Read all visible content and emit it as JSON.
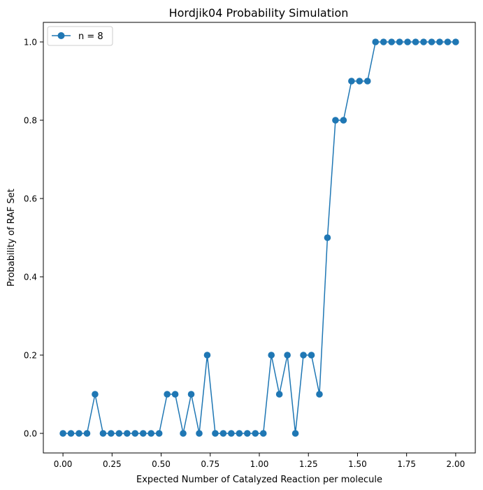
{
  "chart_data": {
    "type": "line",
    "title": "Hordjik04 Probability Simulation",
    "xlabel": "Expected Number of Catalyzed Reaction per molecule",
    "ylabel": "Probability of RAF Set",
    "xlim": [
      -0.1,
      2.1
    ],
    "ylim": [
      -0.05,
      1.05
    ],
    "xticks": [
      "0.00",
      "0.25",
      "0.50",
      "0.75",
      "1.00",
      "1.25",
      "1.50",
      "1.75",
      "2.00"
    ],
    "yticks": [
      "0.0",
      "0.2",
      "0.4",
      "0.6",
      "0.8",
      "1.0"
    ],
    "legend_position": "top-left",
    "grid": false,
    "series": [
      {
        "name": "n = 8",
        "color": "#1f77b4",
        "marker": "circle",
        "x": [
          0.0,
          0.0408,
          0.0816,
          0.1224,
          0.1633,
          0.2041,
          0.2449,
          0.2857,
          0.3265,
          0.3673,
          0.4082,
          0.449,
          0.4898,
          0.5306,
          0.5714,
          0.6122,
          0.6531,
          0.6939,
          0.7347,
          0.7755,
          0.8163,
          0.8571,
          0.898,
          0.9388,
          0.9796,
          1.0204,
          1.0612,
          1.102,
          1.1429,
          1.1837,
          1.2245,
          1.2653,
          1.3061,
          1.3469,
          1.3878,
          1.4286,
          1.4694,
          1.5102,
          1.551,
          1.5918,
          1.6327,
          1.6735,
          1.7143,
          1.7551,
          1.7959,
          1.8367,
          1.8776,
          1.9184,
          1.9592,
          2.0
        ],
        "y": [
          0,
          0,
          0,
          0,
          0.1,
          0,
          0,
          0,
          0,
          0,
          0,
          0,
          0,
          0.1,
          0.1,
          0,
          0.1,
          0,
          0.2,
          0,
          0,
          0,
          0,
          0,
          0,
          0,
          0.2,
          0.1,
          0.2,
          0,
          0.2,
          0.2,
          0.1,
          0.5,
          0.8,
          0.8,
          0.9,
          0.9,
          0.9,
          1,
          1,
          1,
          1,
          1,
          1,
          1,
          1,
          1,
          1,
          1
        ]
      }
    ]
  }
}
